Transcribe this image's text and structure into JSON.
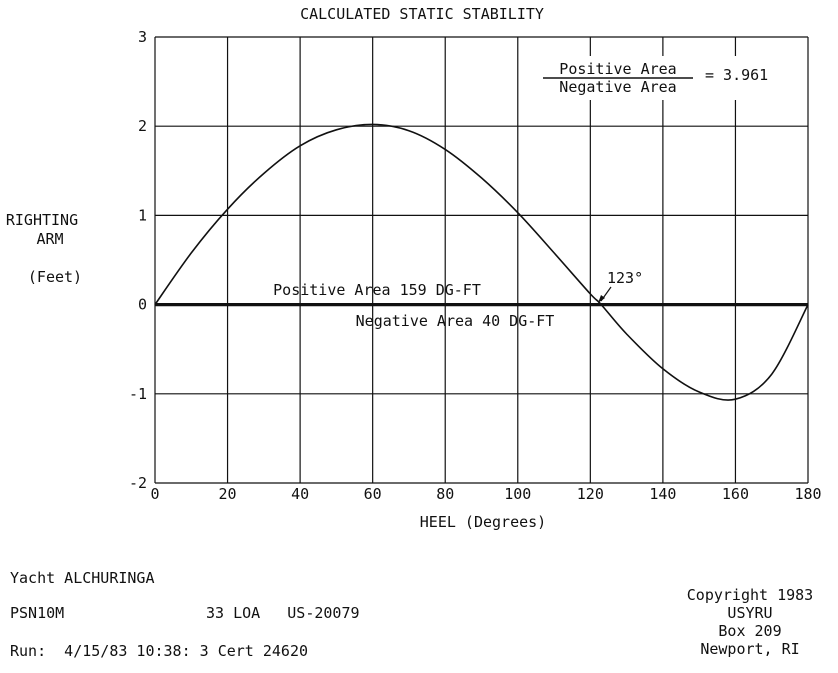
{
  "chart_data": {
    "type": "line",
    "title": "CALCULATED STATIC STABILITY",
    "xlabel": "HEEL (Degrees)",
    "ylabel_lines": [
      "RIGHTING",
      "ARM",
      "(Feet)"
    ],
    "xlim": [
      0,
      180
    ],
    "ylim": [
      -2,
      3
    ],
    "x_ticks": [
      "0",
      "20",
      "40",
      "60",
      "80",
      "100",
      "120",
      "140",
      "160",
      "180"
    ],
    "y_ticks": [
      "3",
      "2",
      "1",
      "0",
      "-1",
      "-2"
    ],
    "grid": true,
    "series": [
      {
        "x": [
          0,
          10,
          20,
          30,
          40,
          50,
          60,
          70,
          80,
          90,
          100,
          110,
          120,
          123,
          130,
          140,
          150,
          160,
          170,
          180
        ],
        "y": [
          0,
          0.58,
          1.07,
          1.47,
          1.78,
          1.96,
          2.02,
          1.95,
          1.74,
          1.42,
          1.03,
          0.58,
          0.12,
          0,
          -0.33,
          -0.72,
          -0.98,
          -1.06,
          -0.78,
          0
        ]
      }
    ],
    "annotations": {
      "ratio_numerator": "Positive Area",
      "ratio_denominator": "Negative Area",
      "ratio_value": "= 3.961",
      "positive_area": "Positive Area 159 DG-FT",
      "negative_area": "Negative Area  40 DG-FT",
      "vanishing_angle": "123°"
    }
  },
  "footer": {
    "yacht": "Yacht ALCHURINGA",
    "psn": "PSN10M",
    "loa": "33 LOA   US-20079",
    "run": "Run:  4/15/83 10:38: 3 Cert 24620",
    "copyright_lines": [
      "Copyright 1983",
      "USYRU",
      "Box 209",
      "Newport, RI"
    ]
  }
}
